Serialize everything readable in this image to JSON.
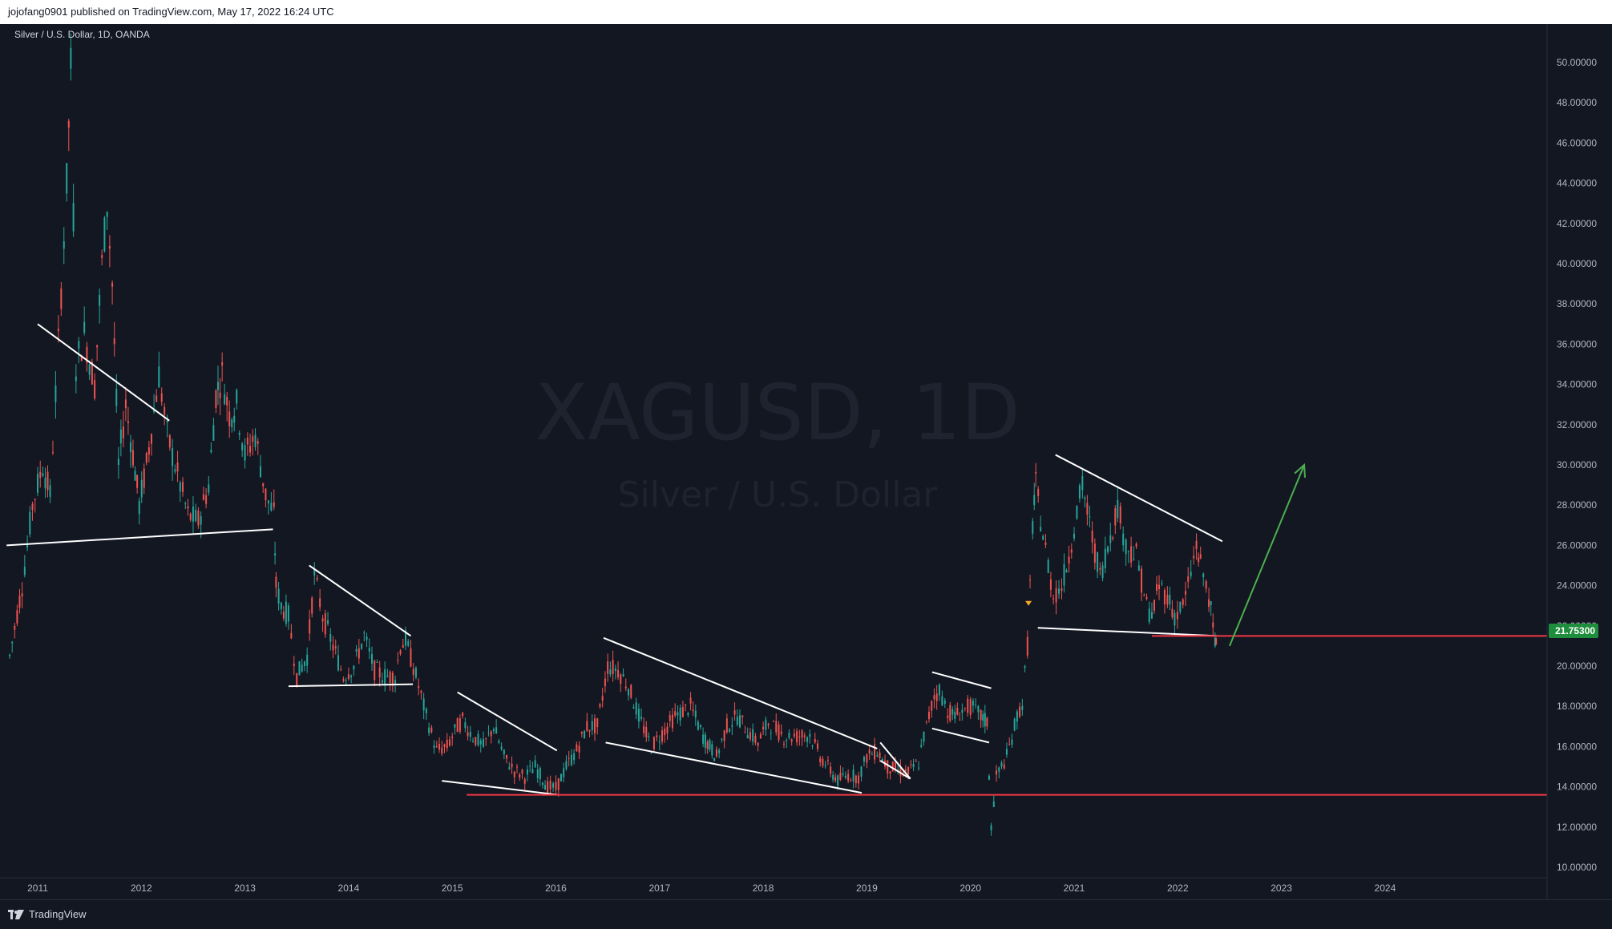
{
  "header": {
    "published_text": "jojofang0901 published on TradingView.com, May 17, 2022 16:24 UTC"
  },
  "symbol": {
    "label": "Silver / U.S. Dollar, 1D, OANDA"
  },
  "watermark": {
    "line1": "XAGUSD, 1D",
    "line2": "Silver / U.S. Dollar"
  },
  "footer": {
    "brand": "TradingView"
  },
  "colors": {
    "background": "#131722",
    "up": "#26a69a",
    "down": "#ef5350",
    "trendline": "#ffffff",
    "support": "#f23645",
    "arrow": "#4caf50",
    "price_badge": "#1e8d3c"
  },
  "chart_data": {
    "type": "candlestick",
    "y_axis": {
      "min": 10,
      "max": 50,
      "ticks": [
        "50.00000",
        "48.00000",
        "46.00000",
        "44.00000",
        "42.00000",
        "40.00000",
        "38.00000",
        "36.00000",
        "34.00000",
        "32.00000",
        "30.00000",
        "28.00000",
        "26.00000",
        "24.00000",
        "22.00000",
        "20.00000",
        "18.00000",
        "16.00000",
        "14.00000",
        "12.00000",
        "10.00000"
      ],
      "tick_values": [
        50,
        48,
        46,
        44,
        42,
        40,
        38,
        36,
        34,
        32,
        30,
        28,
        26,
        24,
        22,
        20,
        18,
        16,
        14,
        12,
        10
      ]
    },
    "x_axis": {
      "labels": [
        "2011",
        "2012",
        "2013",
        "2014",
        "2015",
        "2016",
        "2017",
        "2018",
        "2019",
        "2020",
        "2021",
        "2022",
        "2023",
        "2024"
      ],
      "years": [
        2011,
        2012,
        2013,
        2014,
        2015,
        2016,
        2017,
        2018,
        2019,
        2020,
        2021,
        2022,
        2023,
        2024
      ]
    },
    "current_price": {
      "label": "21.75300",
      "value": 21.753
    },
    "price_path": [
      [
        2010.73,
        20.5
      ],
      [
        2010.85,
        24.0
      ],
      [
        2010.95,
        28.0
      ],
      [
        2011.05,
        30.0
      ],
      [
        2011.12,
        28.5
      ],
      [
        2011.2,
        36.0
      ],
      [
        2011.28,
        44.0
      ],
      [
        2011.32,
        49.8
      ],
      [
        2011.37,
        35.0
      ],
      [
        2011.45,
        36.5
      ],
      [
        2011.55,
        34.0
      ],
      [
        2011.62,
        40.0
      ],
      [
        2011.67,
        43.0
      ],
      [
        2011.72,
        39.0
      ],
      [
        2011.78,
        30.0
      ],
      [
        2011.85,
        33.0
      ],
      [
        2011.92,
        30.5
      ],
      [
        2011.98,
        28.0
      ],
      [
        2012.05,
        30.0
      ],
      [
        2012.17,
        34.5
      ],
      [
        2012.25,
        31.5
      ],
      [
        2012.35,
        29.5
      ],
      [
        2012.45,
        27.5
      ],
      [
        2012.55,
        27.2
      ],
      [
        2012.65,
        29.0
      ],
      [
        2012.72,
        33.5
      ],
      [
        2012.78,
        34.5
      ],
      [
        2012.85,
        32.5
      ],
      [
        2012.92,
        33.0
      ],
      [
        2013.0,
        30.5
      ],
      [
        2013.1,
        31.5
      ],
      [
        2013.2,
        28.5
      ],
      [
        2013.28,
        27.5
      ],
      [
        2013.3,
        24.0
      ],
      [
        2013.35,
        23.0
      ],
      [
        2013.42,
        22.5
      ],
      [
        2013.5,
        19.5
      ],
      [
        2013.6,
        20.5
      ],
      [
        2013.67,
        24.5
      ],
      [
        2013.75,
        22.5
      ],
      [
        2013.85,
        21.0
      ],
      [
        2013.95,
        19.5
      ],
      [
        2014.05,
        20.0
      ],
      [
        2014.15,
        21.5
      ],
      [
        2014.25,
        19.8
      ],
      [
        2014.35,
        19.5
      ],
      [
        2014.45,
        19.5
      ],
      [
        2014.5,
        21.0
      ],
      [
        2014.55,
        21.3
      ],
      [
        2014.65,
        19.5
      ],
      [
        2014.75,
        17.5
      ],
      [
        2014.85,
        15.8
      ],
      [
        2014.95,
        16.0
      ],
      [
        2015.05,
        17.0
      ],
      [
        2015.1,
        17.3
      ],
      [
        2015.2,
        16.5
      ],
      [
        2015.3,
        16.0
      ],
      [
        2015.4,
        17.0
      ],
      [
        2015.5,
        15.5
      ],
      [
        2015.6,
        14.8
      ],
      [
        2015.7,
        14.5
      ],
      [
        2015.8,
        15.0
      ],
      [
        2015.92,
        14.0
      ],
      [
        2016.0,
        13.9
      ],
      [
        2016.1,
        15.0
      ],
      [
        2016.2,
        15.8
      ],
      [
        2016.3,
        17.0
      ],
      [
        2016.4,
        17.0
      ],
      [
        2016.5,
        20.0
      ],
      [
        2016.6,
        19.8
      ],
      [
        2016.7,
        19.0
      ],
      [
        2016.8,
        17.5
      ],
      [
        2016.92,
        16.0
      ],
      [
        2017.0,
        16.5
      ],
      [
        2017.15,
        17.5
      ],
      [
        2017.3,
        18.0
      ],
      [
        2017.42,
        16.5
      ],
      [
        2017.55,
        15.5
      ],
      [
        2017.65,
        17.0
      ],
      [
        2017.75,
        17.5
      ],
      [
        2017.85,
        16.8
      ],
      [
        2017.95,
        16.2
      ],
      [
        2018.05,
        17.2
      ],
      [
        2018.2,
        16.5
      ],
      [
        2018.3,
        16.5
      ],
      [
        2018.45,
        16.6
      ],
      [
        2018.55,
        15.5
      ],
      [
        2018.65,
        14.8
      ],
      [
        2018.72,
        14.3
      ],
      [
        2018.82,
        14.6
      ],
      [
        2018.92,
        14.5
      ],
      [
        2019.0,
        15.5
      ],
      [
        2019.1,
        15.8
      ],
      [
        2019.2,
        15.0
      ],
      [
        2019.3,
        14.8
      ],
      [
        2019.4,
        14.7
      ],
      [
        2019.5,
        15.2
      ],
      [
        2019.55,
        16.5
      ],
      [
        2019.65,
        18.5
      ],
      [
        2019.7,
        18.8
      ],
      [
        2019.78,
        17.8
      ],
      [
        2019.85,
        17.5
      ],
      [
        2019.92,
        17.8
      ],
      [
        2020.0,
        18.0
      ],
      [
        2020.1,
        17.5
      ],
      [
        2020.16,
        17.2
      ],
      [
        2020.2,
        12.0
      ],
      [
        2020.25,
        14.5
      ],
      [
        2020.35,
        15.5
      ],
      [
        2020.45,
        17.5
      ],
      [
        2020.5,
        18.2
      ],
      [
        2020.55,
        21.0
      ],
      [
        2020.6,
        27.0
      ],
      [
        2020.63,
        29.0
      ],
      [
        2020.7,
        26.5
      ],
      [
        2020.8,
        23.5
      ],
      [
        2020.88,
        24.0
      ],
      [
        2020.95,
        25.5
      ],
      [
        2021.0,
        27.0
      ],
      [
        2021.08,
        29.0
      ],
      [
        2021.15,
        27.0
      ],
      [
        2021.25,
        24.5
      ],
      [
        2021.35,
        26.5
      ],
      [
        2021.42,
        28.0
      ],
      [
        2021.5,
        26.0
      ],
      [
        2021.6,
        25.5
      ],
      [
        2021.7,
        23.0
      ],
      [
        2021.75,
        22.5
      ],
      [
        2021.82,
        24.0
      ],
      [
        2021.9,
        23.5
      ],
      [
        2021.97,
        22.5
      ],
      [
        2022.05,
        23.0
      ],
      [
        2022.1,
        24.0
      ],
      [
        2022.18,
        26.0
      ],
      [
        2022.22,
        25.0
      ],
      [
        2022.3,
        23.5
      ],
      [
        2022.36,
        21.0
      ],
      [
        2022.38,
        21.75
      ]
    ],
    "trendlines": [
      {
        "x": [
          2011.0,
          2012.27
        ],
        "y": [
          37.0,
          32.2
        ]
      },
      {
        "x": [
          2010.7,
          2013.27
        ],
        "y": [
          26.0,
          26.8
        ]
      },
      {
        "x": [
          2013.62,
          2014.6
        ],
        "y": [
          25.0,
          21.5
        ]
      },
      {
        "x": [
          2013.42,
          2014.62
        ],
        "y": [
          19.0,
          19.1
        ]
      },
      {
        "x": [
          2015.05,
          2016.01
        ],
        "y": [
          18.7,
          15.8
        ]
      },
      {
        "x": [
          2014.9,
          2016.02
        ],
        "y": [
          14.3,
          13.6
        ]
      },
      {
        "x": [
          2016.46,
          2019.1
        ],
        "y": [
          21.4,
          15.9
        ]
      },
      {
        "x": [
          2016.48,
          2018.95
        ],
        "y": [
          16.2,
          13.7
        ]
      },
      {
        "x": [
          2019.13,
          2019.42
        ],
        "y": [
          16.2,
          14.4
        ]
      },
      {
        "x": [
          2019.13,
          2019.42
        ],
        "y": [
          15.3,
          14.4
        ]
      },
      {
        "x": [
          2019.63,
          2020.2
        ],
        "y": [
          19.7,
          18.9
        ]
      },
      {
        "x": [
          2019.63,
          2020.18
        ],
        "y": [
          16.9,
          16.2
        ]
      },
      {
        "x": [
          2020.82,
          2022.43
        ],
        "y": [
          30.5,
          26.2
        ]
      },
      {
        "x": [
          2020.65,
          2022.38
        ],
        "y": [
          21.9,
          21.5
        ]
      }
    ],
    "support_lines": [
      {
        "y": 13.6,
        "x_start": 2015.14
      },
      {
        "y": 21.5,
        "x_start": 2021.75
      }
    ],
    "projection_arrow": {
      "x": [
        2022.5,
        2023.22
      ],
      "y": [
        21.0,
        30.0
      ]
    },
    "marker": {
      "x": 2020.56,
      "y": 23.0
    }
  }
}
